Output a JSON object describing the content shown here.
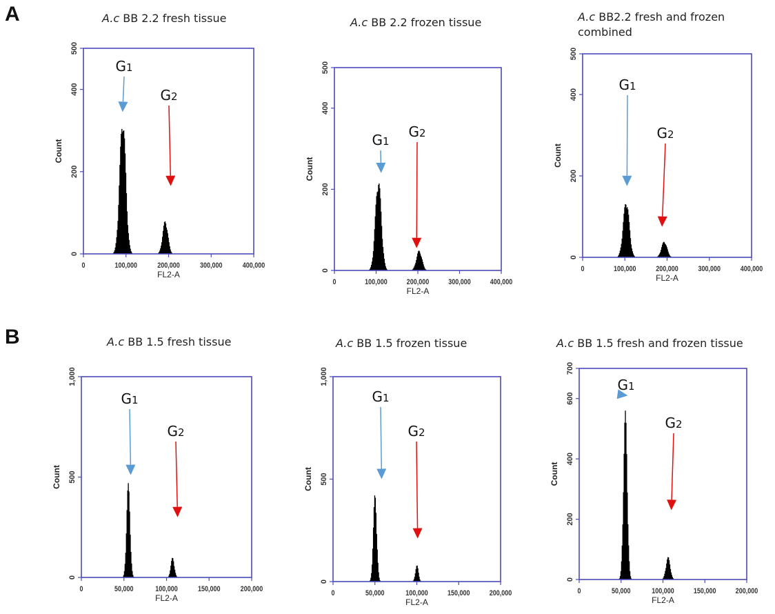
{
  "figure": {
    "section_a_label": "A",
    "section_b_label": "B"
  },
  "chart_data": [
    {
      "type": "histogram",
      "species": "A.c",
      "title_rest": "BB 2.2 fresh tissue",
      "title_line2": "",
      "xlabel": "FL2-A",
      "ylabel": "Count",
      "xlim": [
        0,
        400000
      ],
      "ylim": [
        0,
        500
      ],
      "xticks": [
        "0",
        "100,000",
        "200,000",
        "300,000",
        "400,000"
      ],
      "yticks": [
        "0",
        "200",
        "400",
        "500"
      ],
      "peaks": [
        {
          "label": "G1",
          "center": 92000,
          "height": 340,
          "width": 7000
        },
        {
          "label": "G2",
          "center": 192000,
          "height": 82,
          "width": 6000
        }
      ],
      "annotations": [
        {
          "text": "G1",
          "color": "#5B9BD5",
          "arrow_tip": [
            92000,
            345
          ]
        },
        {
          "text": "G2",
          "color": "#E01010",
          "arrow_tip": [
            205000,
            165
          ]
        }
      ]
    },
    {
      "type": "histogram",
      "species": "A.c",
      "title_rest": "BB 2.2 frozen tissue",
      "title_line2": "",
      "xlabel": "FL2-A",
      "ylabel": "Count",
      "xlim": [
        0,
        400000
      ],
      "ylim": [
        0,
        500
      ],
      "xticks": [
        "0",
        "100,000",
        "200,000",
        "300,000",
        "400,000"
      ],
      "yticks": [
        "0",
        "200",
        "400",
        "500"
      ],
      "peaks": [
        {
          "label": "G1",
          "center": 105000,
          "height": 230,
          "width": 7000
        },
        {
          "label": "G2",
          "center": 203000,
          "height": 50,
          "width": 6500
        }
      ],
      "annotations": [
        {
          "text": "G1",
          "color": "#5B9BD5",
          "arrow_tip": [
            112000,
            240
          ]
        },
        {
          "text": "G2",
          "color": "#E01010",
          "arrow_tip": [
            197000,
            55
          ]
        }
      ]
    },
    {
      "type": "histogram",
      "species": "A.c",
      "title_rest": "BB2.2 fresh and frozen",
      "title_line2": "combined",
      "xlabel": "FL2-A",
      "ylabel": "Count",
      "xlim": [
        0,
        400000
      ],
      "ylim": [
        0,
        500
      ],
      "xticks": [
        "0",
        "100,000",
        "200,000",
        "300,000",
        "400,000"
      ],
      "yticks": [
        "0",
        "200",
        "400",
        "500"
      ],
      "peaks": [
        {
          "label": "G1",
          "center": 103000,
          "height": 143,
          "width": 7000
        },
        {
          "label": "G2",
          "center": 193000,
          "height": 40,
          "width": 6500
        }
      ],
      "annotations": [
        {
          "text": "G1",
          "color": "#5B9BD5",
          "arrow_tip": [
            105000,
            175
          ]
        },
        {
          "text": "G2",
          "color": "#E01010",
          "arrow_tip": [
            188000,
            75
          ]
        }
      ]
    },
    {
      "type": "histogram",
      "species": "A.c",
      "title_rest": "BB 1.5 fresh tissue",
      "title_line2": "",
      "xlabel": "FL2-A",
      "ylabel": "Count",
      "xlim": [
        0,
        200000
      ],
      "ylim": [
        0,
        1000
      ],
      "xticks": [
        "0",
        "50,000",
        "100,000",
        "150,000",
        "200,000"
      ],
      "yticks": [
        "0",
        "500",
        "1,000"
      ],
      "peaks": [
        {
          "label": "G1",
          "center": 55000,
          "height": 470,
          "width": 2000
        },
        {
          "label": "G2",
          "center": 107000,
          "height": 100,
          "width": 2000
        }
      ],
      "annotations": [
        {
          "text": "G1",
          "color": "#5B9BD5",
          "arrow_tip": [
            58000,
            510
          ]
        },
        {
          "text": "G2",
          "color": "#E01010",
          "arrow_tip": [
            113000,
            300
          ]
        }
      ]
    },
    {
      "type": "histogram",
      "species": "A.c",
      "title_rest": "BB 1.5 frozen tissue",
      "title_line2": "",
      "xlabel": "FL2-A",
      "ylabel": "Count",
      "xlim": [
        0,
        200000
      ],
      "ylim": [
        0,
        1000
      ],
      "xticks": [
        "0",
        "50,000",
        "100,000",
        "150,000",
        "200,000"
      ],
      "yticks": [
        "0",
        "500",
        "1,000"
      ],
      "peaks": [
        {
          "label": "G1",
          "center": 50000,
          "height": 430,
          "width": 2000
        },
        {
          "label": "G2",
          "center": 100000,
          "height": 80,
          "width": 1800
        }
      ],
      "annotations": [
        {
          "text": "G1",
          "color": "#5B9BD5",
          "arrow_tip": [
            58000,
            500
          ]
        },
        {
          "text": "G2",
          "color": "#E01010",
          "arrow_tip": [
            101000,
            210
          ]
        }
      ]
    },
    {
      "type": "histogram",
      "species": "A.c",
      "title_rest": "BB 1.5 fresh and frozen tissue",
      "title_line2": "",
      "xlabel": "FL2-A",
      "ylabel": "Count",
      "xlim": [
        0,
        200000
      ],
      "ylim": [
        0,
        700
      ],
      "xticks": [
        "0",
        "50,000",
        "100,000",
        "150,000",
        "200,000"
      ],
      "yticks": [
        "0",
        "200",
        "400",
        "600",
        "700"
      ],
      "peaks": [
        {
          "label": "G1",
          "center": 55000,
          "height": 560,
          "width": 2200
        },
        {
          "label": "G2",
          "center": 106000,
          "height": 75,
          "width": 2500
        }
      ],
      "annotations": [
        {
          "text": "G1",
          "color": "#5B9BD5",
          "arrow_tip": [
            58000,
            610
          ]
        },
        {
          "text": "G2",
          "color": "#E01010",
          "arrow_tip": [
            110000,
            230
          ]
        }
      ]
    }
  ],
  "colors": {
    "frame": "#4a4ab8",
    "bars": "#000000",
    "g1_arrow": "#5B9BD5",
    "g2_arrow": "#E01010",
    "tick_text": "#333333"
  }
}
